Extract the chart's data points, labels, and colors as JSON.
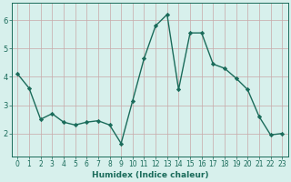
{
  "x": [
    0,
    1,
    2,
    3,
    4,
    5,
    6,
    7,
    8,
    9,
    10,
    11,
    12,
    13,
    14,
    15,
    16,
    17,
    18,
    19,
    20,
    21,
    22,
    23
  ],
  "y": [
    4.1,
    3.6,
    2.5,
    2.7,
    2.4,
    2.3,
    2.4,
    2.45,
    2.3,
    1.65,
    3.15,
    4.65,
    5.8,
    6.2,
    3.55,
    5.55,
    5.55,
    4.45,
    4.3,
    3.95,
    3.55,
    2.6,
    1.95,
    2.0
  ],
  "line_color": "#1a6b5a",
  "marker": "D",
  "markersize": 2.2,
  "linewidth": 1.0,
  "bg_color": "#d7f0ec",
  "grid_color": "#c8a8a8",
  "xlabel": "Humidex (Indice chaleur)",
  "xlabel_fontsize": 6.5,
  "tick_fontsize": 5.5,
  "ylim": [
    1.2,
    6.6
  ],
  "xlim": [
    -0.5,
    23.5
  ],
  "yticks": [
    2,
    3,
    4,
    5,
    6
  ],
  "xticks": [
    0,
    1,
    2,
    3,
    4,
    5,
    6,
    7,
    8,
    9,
    10,
    11,
    12,
    13,
    14,
    15,
    16,
    17,
    18,
    19,
    20,
    21,
    22,
    23
  ]
}
